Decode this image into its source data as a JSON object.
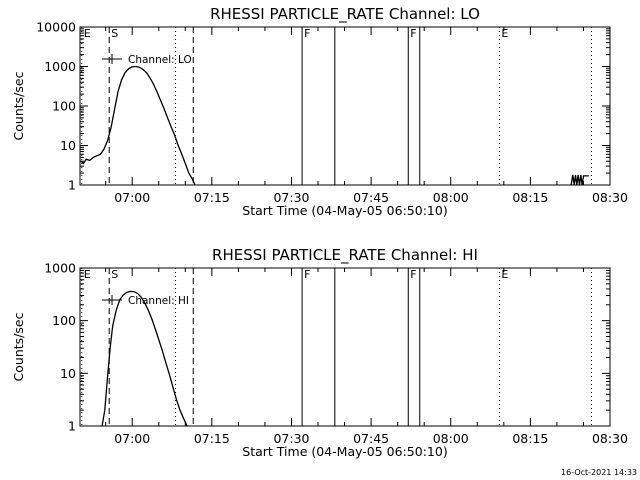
{
  "timestamp": "16-Oct-2021 14:33",
  "chart_data": [
    {
      "type": "line",
      "title": "RHESSI PARTICLE_RATE Channel: LO",
      "xlabel": "Start Time (04-May-05 06:50:10)",
      "ylabel": "Counts/sec",
      "y_scale": "log",
      "ylim": [
        1,
        10000
      ],
      "xlim": [
        "06:50:10",
        "08:30:00"
      ],
      "x_ticks": [
        "07:00",
        "07:15",
        "07:30",
        "07:45",
        "08:00",
        "08:15",
        "08:30"
      ],
      "y_ticks": [
        "1",
        "10",
        "100",
        "1000",
        "10000"
      ],
      "legend": {
        "label": "Channel: LO",
        "position": "top-left"
      },
      "event_markers": [
        {
          "label": "E",
          "time": "06:50:30",
          "style": "dotted"
        },
        {
          "label": "S",
          "time": "06:55:40",
          "style": "dashed"
        },
        {
          "label": "",
          "time": "07:08:10",
          "style": "dotted"
        },
        {
          "label": "",
          "time": "07:11:30",
          "style": "dashed"
        },
        {
          "label": "F",
          "time": "07:32:00",
          "style": "solid"
        },
        {
          "label": "",
          "time": "07:38:10",
          "style": "solid"
        },
        {
          "label": "F",
          "time": "07:52:00",
          "style": "solid"
        },
        {
          "label": "",
          "time": "07:54:10",
          "style": "solid"
        },
        {
          "label": "E",
          "time": "08:09:10",
          "style": "dotted"
        },
        {
          "label": "",
          "time": "08:26:30",
          "style": "dotted"
        }
      ],
      "series": [
        {
          "segments": [
            [
              [
                "06:50:20",
                4
              ],
              [
                "06:50:50",
                3.5
              ],
              [
                "06:51:20",
                4.5
              ],
              [
                "06:52:00",
                4.2
              ],
              [
                "06:52:40",
                5
              ],
              [
                "06:53:20",
                5.5
              ],
              [
                "06:54:00",
                6
              ],
              [
                "06:54:40",
                8
              ],
              [
                "06:55:20",
                13
              ],
              [
                "06:56:00",
                28
              ],
              [
                "06:56:40",
                80
              ],
              [
                "06:57:20",
                230
              ],
              [
                "06:58:00",
                460
              ],
              [
                "06:58:40",
                700
              ],
              [
                "06:59:20",
                880
              ],
              [
                "07:00:00",
                980
              ],
              [
                "07:00:40",
                1000
              ],
              [
                "07:01:20",
                960
              ],
              [
                "07:02:00",
                850
              ],
              [
                "07:02:40",
                700
              ],
              [
                "07:03:20",
                520
              ],
              [
                "07:04:00",
                360
              ],
              [
                "07:04:40",
                230
              ],
              [
                "07:05:20",
                140
              ],
              [
                "07:06:00",
                85
              ],
              [
                "07:06:40",
                50
              ],
              [
                "07:07:20",
                30
              ],
              [
                "07:08:00",
                18
              ],
              [
                "07:08:40",
                10
              ],
              [
                "07:09:20",
                6
              ],
              [
                "07:10:00",
                3.5
              ],
              [
                "07:10:40",
                2
              ],
              [
                "07:11:20",
                1.4
              ],
              [
                "07:11:50",
                1
              ]
            ],
            [
              [
                "08:22:40",
                1
              ],
              [
                "08:23:00",
                1.8
              ],
              [
                "08:23:15",
                1
              ],
              [
                "08:23:30",
                1.8
              ],
              [
                "08:23:45",
                1
              ],
              [
                "08:24:00",
                1.8
              ],
              [
                "08:24:15",
                1
              ],
              [
                "08:24:30",
                1.8
              ],
              [
                "08:24:45",
                1
              ],
              [
                "08:25:00",
                1.7
              ],
              [
                "08:25:30",
                1.7
              ],
              [
                "08:26:00",
                1.7
              ]
            ]
          ]
        }
      ]
    },
    {
      "type": "line",
      "title": "RHESSI PARTICLE_RATE Channel: HI",
      "xlabel": "Start Time (04-May-05 06:50:10)",
      "ylabel": "Counts/sec",
      "y_scale": "log",
      "ylim": [
        1,
        1000
      ],
      "xlim": [
        "06:50:10",
        "08:30:00"
      ],
      "x_ticks": [
        "07:00",
        "07:15",
        "07:30",
        "07:45",
        "08:00",
        "08:15",
        "08:30"
      ],
      "y_ticks": [
        "1",
        "10",
        "100",
        "1000"
      ],
      "legend": {
        "label": "Channel: HI",
        "position": "top-left"
      },
      "event_markers": [
        {
          "label": "E",
          "time": "06:50:30",
          "style": "dotted"
        },
        {
          "label": "S",
          "time": "06:55:40",
          "style": "dashed"
        },
        {
          "label": "",
          "time": "07:08:10",
          "style": "dotted"
        },
        {
          "label": "",
          "time": "07:11:30",
          "style": "dashed"
        },
        {
          "label": "F",
          "time": "07:32:00",
          "style": "solid"
        },
        {
          "label": "",
          "time": "07:38:10",
          "style": "solid"
        },
        {
          "label": "F",
          "time": "07:52:00",
          "style": "solid"
        },
        {
          "label": "",
          "time": "07:54:10",
          "style": "solid"
        },
        {
          "label": "E",
          "time": "08:09:10",
          "style": "dotted"
        },
        {
          "label": "",
          "time": "08:26:30",
          "style": "dotted"
        }
      ],
      "series": [
        {
          "segments": [
            [
              [
                "06:54:20",
                1
              ],
              [
                "06:54:50",
                2
              ],
              [
                "06:55:20",
                8
              ],
              [
                "06:55:50",
                30
              ],
              [
                "06:56:20",
                80
              ],
              [
                "06:57:00",
                160
              ],
              [
                "06:57:40",
                250
              ],
              [
                "06:58:20",
                310
              ],
              [
                "06:59:00",
                345
              ],
              [
                "06:59:40",
                360
              ],
              [
                "07:00:20",
                355
              ],
              [
                "07:01:00",
                330
              ],
              [
                "07:01:40",
                280
              ],
              [
                "07:02:20",
                220
              ],
              [
                "07:03:00",
                160
              ],
              [
                "07:03:40",
                110
              ],
              [
                "07:04:20",
                70
              ],
              [
                "07:05:00",
                44
              ],
              [
                "07:05:40",
                27
              ],
              [
                "07:06:20",
                16
              ],
              [
                "07:07:00",
                9.5
              ],
              [
                "07:07:40",
                5.5
              ],
              [
                "07:08:20",
                3.2
              ],
              [
                "07:09:00",
                2
              ],
              [
                "07:09:40",
                1.4
              ],
              [
                "07:10:20",
                1
              ]
            ]
          ]
        }
      ]
    }
  ]
}
